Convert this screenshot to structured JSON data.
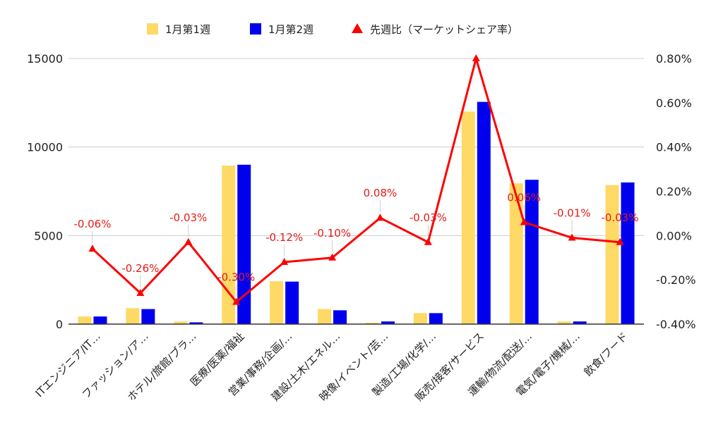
{
  "chart_data": {
    "type": "bar",
    "categories": [
      "ITエンジニア/IT…",
      "ファッション/ア…",
      "ホテル/旅館/ブラ…",
      "医療/医薬/福祉",
      "営業/事務/企画/…",
      "建設/土木/エネル…",
      "映像/イベント/芸…",
      "製造/工場/化学/…",
      "販売/接客/サービス",
      "運輸/物流/配送/…",
      "電気/電子/機械/…",
      "飲食/フード"
    ],
    "series": [
      {
        "name": "1月第1週",
        "type": "bar",
        "axis": "left",
        "color": "#ffd966",
        "values": [
          430,
          900,
          150,
          8950,
          2420,
          850,
          80,
          620,
          12000,
          7950,
          150,
          7850
        ]
      },
      {
        "name": "1月第2週",
        "type": "bar",
        "axis": "left",
        "color": "#0000ee",
        "values": [
          430,
          850,
          100,
          9000,
          2400,
          780,
          150,
          620,
          12550,
          8150,
          150,
          8000
        ]
      },
      {
        "name": "先週比（マーケットシェア率）",
        "type": "line",
        "axis": "right",
        "color": "#ff0000",
        "values": [
          -0.06,
          -0.26,
          -0.03,
          -0.3,
          -0.12,
          -0.1,
          0.08,
          -0.03,
          0.8,
          0.06,
          -0.01,
          -0.03
        ],
        "labels": [
          "-0.06%",
          "-0.26%",
          "-0.03%",
          "-0.30%",
          "-0.12%",
          "-0.10%",
          "0.08%",
          "-0.03%",
          "",
          "0.06%",
          "-0.01%",
          "-0.03%"
        ]
      }
    ],
    "y_left": {
      "min": 0,
      "max": 15000,
      "ticks": [
        "0",
        "5000",
        "10000",
        "15000"
      ]
    },
    "y_right": {
      "min": -0.4,
      "max": 0.8,
      "ticks": [
        "-0.40%",
        "-0.20%",
        "0.00%",
        "0.20%",
        "0.40%",
        "0.60%",
        "0.80%"
      ]
    },
    "grid": true,
    "legend_position": "top-center",
    "title": "",
    "xlabel": "",
    "ylabel": ""
  }
}
